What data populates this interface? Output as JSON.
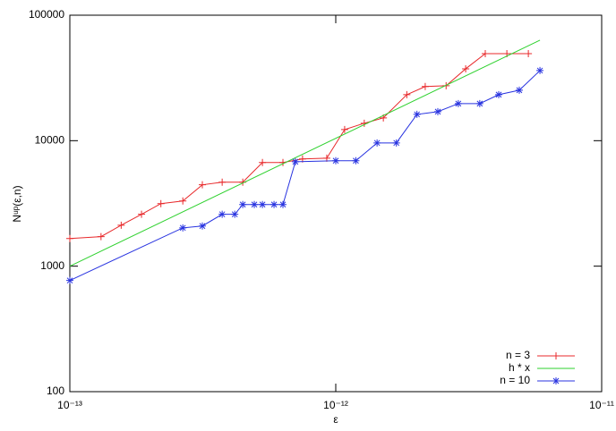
{
  "chart_data": {
    "type": "line",
    "log_x": true,
    "log_y": true,
    "xlabel": "ε",
    "ylabel": "Nᵘᵖ(ε,n)",
    "xlim": [
      1e-13,
      1e-11
    ],
    "ylim": [
      100,
      100000
    ],
    "xticks": [
      {
        "value": 1e-13,
        "label": "10⁻¹³"
      },
      {
        "value": 1e-12,
        "label": "10⁻¹²"
      },
      {
        "value": 1e-11,
        "label": "10⁻¹¹"
      }
    ],
    "yticks": [
      100,
      1000,
      10000,
      100000
    ],
    "legend": "lower right",
    "series": [
      {
        "name": "n = 3",
        "color": "#e8292b",
        "marker": "+",
        "x": [
          1e-13,
          1.31e-13,
          1.56e-13,
          1.86e-13,
          2.2e-13,
          2.66e-13,
          3.15e-13,
          3.74e-13,
          4.47e-13,
          5.3e-13,
          6.33e-13,
          7.5e-13,
          9.25e-13,
          1.08e-12,
          1.28e-12,
          1.51e-12,
          1.85e-12,
          2.17e-12,
          2.6e-12,
          3.08e-12,
          3.65e-12,
          4.4e-12,
          5.3e-12
        ],
        "values": [
          1660,
          1720,
          2120,
          2590,
          3150,
          3310,
          4450,
          4670,
          4670,
          6700,
          6700,
          7150,
          7260,
          12270,
          13770,
          15200,
          23250,
          27000,
          27400,
          37400,
          49400,
          49400,
          49400
        ]
      },
      {
        "name": "h * x",
        "color": "#2ed12e",
        "marker": "none",
        "x": [
          1e-13,
          5.86e-12
        ],
        "values": [
          1000,
          63200
        ]
      },
      {
        "name": "n = 10",
        "color": "#2833e0",
        "marker": "*",
        "x": [
          1e-13,
          2.66e-13,
          3.15e-13,
          3.74e-13,
          4.17e-13,
          4.47e-13,
          4.94e-13,
          5.3e-13,
          5.86e-13,
          6.33e-13,
          7.05e-13,
          1e-12,
          1.19e-12,
          1.43e-12,
          1.69e-12,
          2.02e-12,
          2.42e-12,
          2.89e-12,
          3.48e-12,
          4.1e-12,
          4.9e-12,
          5.86e-12
        ],
        "values": [
          769,
          2020,
          2090,
          2590,
          2590,
          3100,
          3100,
          3100,
          3100,
          3100,
          6800,
          6920,
          6920,
          9600,
          9600,
          16200,
          17030,
          19740,
          19740,
          23250,
          25250,
          36200
        ]
      }
    ]
  }
}
